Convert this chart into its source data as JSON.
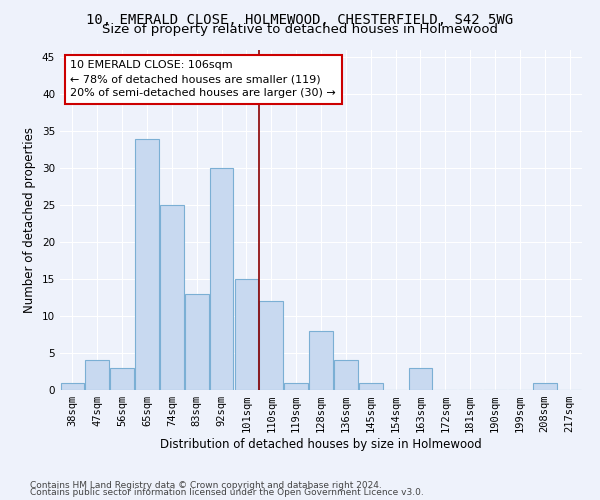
{
  "title1": "10, EMERALD CLOSE, HOLMEWOOD, CHESTERFIELD, S42 5WG",
  "title2": "Size of property relative to detached houses in Holmewood",
  "xlabel": "Distribution of detached houses by size in Holmewood",
  "ylabel": "Number of detached properties",
  "categories": [
    "38sqm",
    "47sqm",
    "56sqm",
    "65sqm",
    "74sqm",
    "83sqm",
    "92sqm",
    "101sqm",
    "110sqm",
    "119sqm",
    "128sqm",
    "136sqm",
    "145sqm",
    "154sqm",
    "163sqm",
    "172sqm",
    "181sqm",
    "190sqm",
    "199sqm",
    "208sqm",
    "217sqm"
  ],
  "values": [
    1,
    4,
    3,
    34,
    25,
    13,
    30,
    15,
    12,
    1,
    8,
    4,
    1,
    0,
    3,
    0,
    0,
    0,
    0,
    1,
    0
  ],
  "bar_color": "#c8d9f0",
  "bar_edge_color": "#7bafd4",
  "vline_x_index": 7.5,
  "vline_color": "#8b0000",
  "annotation_line1": "10 EMERALD CLOSE: 106sqm",
  "annotation_line2": "← 78% of detached houses are smaller (119)",
  "annotation_line3": "20% of semi-detached houses are larger (30) →",
  "annotation_box_color": "#ffffff",
  "annotation_box_edge_color": "#cc0000",
  "ylim": [
    0,
    46
  ],
  "yticks": [
    0,
    5,
    10,
    15,
    20,
    25,
    30,
    35,
    40,
    45
  ],
  "background_color": "#eef2fb",
  "grid_color": "#ffffff",
  "footer1": "Contains HM Land Registry data © Crown copyright and database right 2024.",
  "footer2": "Contains public sector information licensed under the Open Government Licence v3.0.",
  "title_fontsize": 10,
  "subtitle_fontsize": 9.5,
  "axis_label_fontsize": 8.5,
  "tick_fontsize": 7.5,
  "annotation_fontsize": 8,
  "footer_fontsize": 6.5
}
